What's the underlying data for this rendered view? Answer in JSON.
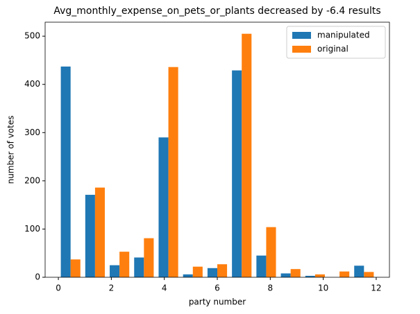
{
  "chart_data": {
    "type": "histogram",
    "title": "Avg_monthly_expense_on_pets_or_plants decreased by -6.4 results",
    "x_label": "party number",
    "y_label": "number of votes",
    "bins": [
      0,
      0.9231,
      1.8462,
      2.7692,
      3.6923,
      4.6154,
      5.5385,
      6.4615,
      7.3846,
      8.3077,
      9.2308,
      10.1538,
      11.0769,
      12
    ],
    "series": [
      {
        "name": "manipulated",
        "color": "#1f77b4",
        "values": [
          437,
          171,
          25,
          41,
          290,
          6,
          19,
          429,
          45,
          8,
          3,
          0,
          24
        ]
      },
      {
        "name": "original",
        "color": "#ff7f0e",
        "values": [
          37,
          186,
          53,
          81,
          436,
          22,
          27,
          505,
          104,
          17,
          6,
          12,
          11
        ]
      }
    ],
    "xlim": [
      -0.5,
      12.5
    ],
    "xticks": [
      0,
      2,
      4,
      6,
      8,
      10,
      12
    ],
    "ylim": [
      0,
      529
    ],
    "yticks": [
      0,
      100,
      200,
      300,
      400,
      500
    ],
    "legend": "upper right"
  }
}
